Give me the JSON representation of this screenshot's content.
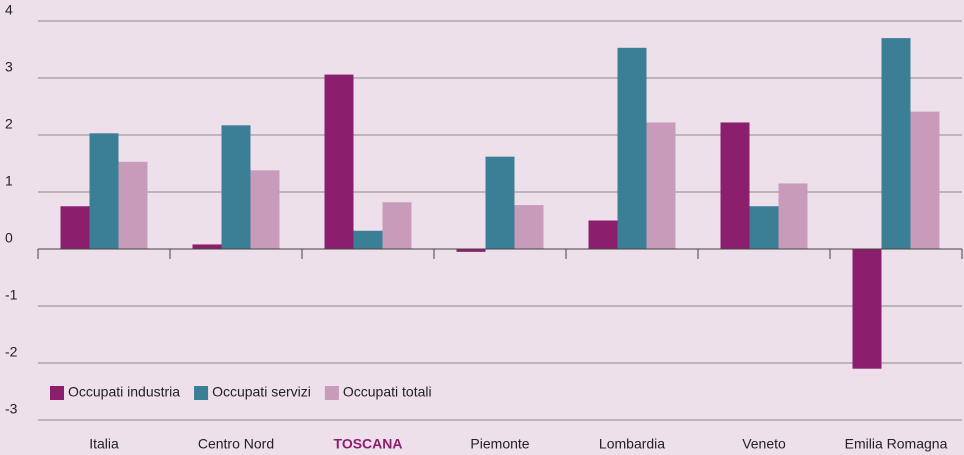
{
  "chart_data": {
    "type": "bar",
    "categories": [
      "Italia",
      "Centro Nord",
      "TOSCANA",
      "Piemonte",
      "Lombardia",
      "Veneto",
      "Emilia Romagna"
    ],
    "series": [
      {
        "name": "Occupati industria",
        "color": "#8b1f6e",
        "values": [
          0.75,
          0.08,
          3.06,
          -0.05,
          0.5,
          2.22,
          -2.1
        ]
      },
      {
        "name": "Occupati servizi",
        "color": "#3a7f96",
        "values": [
          2.03,
          2.17,
          0.32,
          1.62,
          3.53,
          0.75,
          3.7
        ]
      },
      {
        "name": "Occupati totali",
        "color": "#c89bbb",
        "values": [
          1.53,
          1.38,
          0.82,
          0.77,
          2.22,
          1.15,
          2.41
        ]
      }
    ],
    "ylim": [
      -3,
      4
    ],
    "yticks": [
      -3,
      -2,
      -1,
      0,
      1,
      2,
      3,
      4
    ],
    "grid": true,
    "legend": "bottom-left",
    "highlight_category_index": 2,
    "highlight_color": "#8b1f6e"
  }
}
